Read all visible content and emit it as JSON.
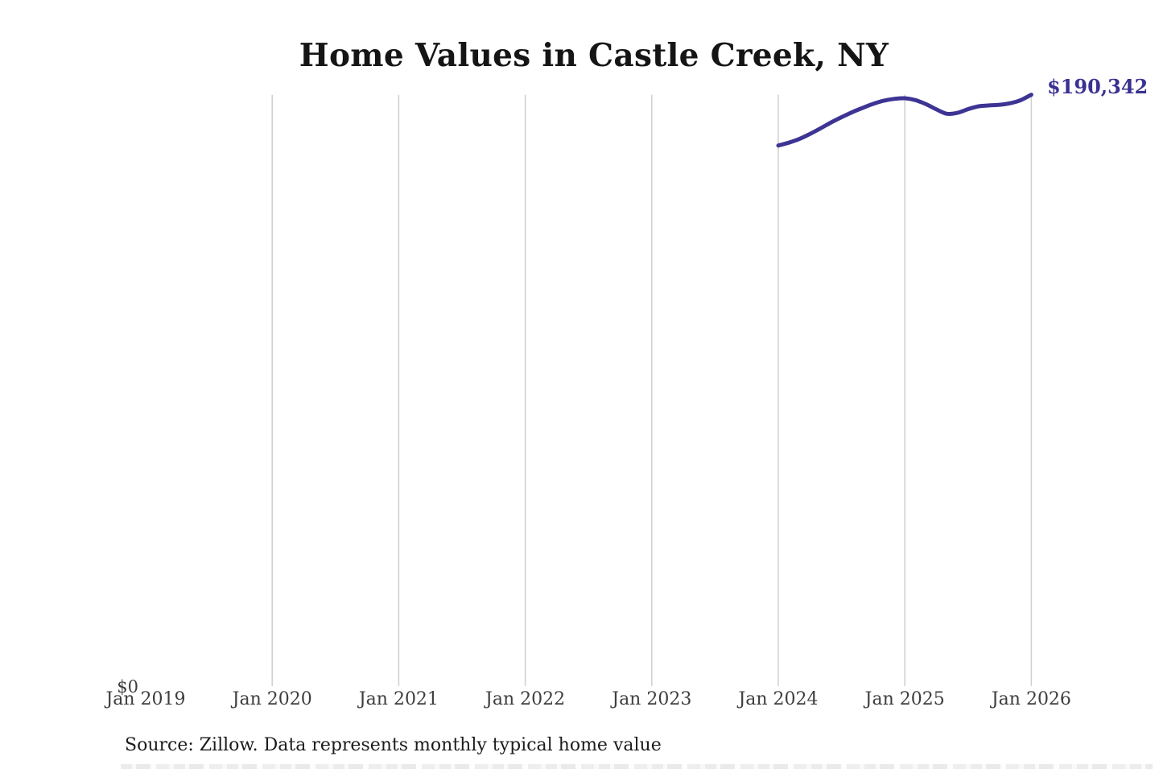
{
  "chart_data": {
    "type": "line",
    "title": "Home Values in Castle Creek, NY",
    "x_tick_labels": [
      "Jan 2019",
      "Jan 2020",
      "Jan 2021",
      "Jan 2022",
      "Jan 2023",
      "Jan 2024",
      "Jan 2025",
      "Jan 2026"
    ],
    "gridlines_at_tick_indexes": [
      1,
      2,
      3,
      4,
      5,
      6,
      7
    ],
    "grid": "vertical-only",
    "y_zero_label": "$0",
    "end_label": "$190,342",
    "ylim": [
      0,
      190342
    ],
    "x_range_months_since_jan2019": [
      0,
      84
    ],
    "series": [
      {
        "name": "Monthly typical home value",
        "start_month": "2024-01",
        "months": [
          "2024-01",
          "2024-02",
          "2024-03",
          "2024-04",
          "2024-05",
          "2024-06",
          "2024-07",
          "2024-08",
          "2024-09",
          "2024-10",
          "2024-11",
          "2024-12",
          "2025-01",
          "2025-02",
          "2025-03",
          "2025-04",
          "2025-05",
          "2025-06",
          "2025-07",
          "2025-08",
          "2025-09",
          "2025-10",
          "2025-11",
          "2025-12",
          "2026-01"
        ],
        "values": [
          174000,
          174900,
          176100,
          177700,
          179500,
          181400,
          183100,
          184700,
          186100,
          187400,
          188400,
          189000,
          189200,
          188600,
          187300,
          185600,
          184200,
          184500,
          185700,
          186600,
          186900,
          187100,
          187600,
          188600,
          190342
        ]
      }
    ],
    "colors": {
      "line": "#3d3494",
      "end_label": "#3a3191",
      "gridline": "#cfcfcf",
      "title": "#151515",
      "axis_label": "#3e3e3e"
    }
  },
  "footer": {
    "source": "Source: Zillow. Data represents monthly typical home value"
  }
}
